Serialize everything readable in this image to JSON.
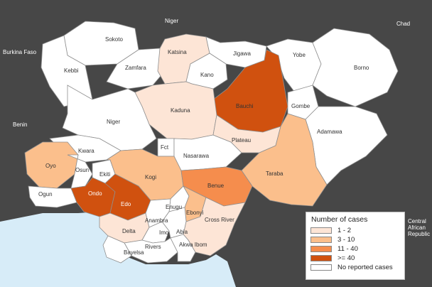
{
  "colors": {
    "background": "#474747",
    "sea": "#d7ecf8",
    "border": "#8f8f8f",
    "categories": [
      "#fde5d6",
      "#fbbf8c",
      "#f58d4d",
      "#d0510f",
      "#ffffff"
    ]
  },
  "neighbors": {
    "niger": "Niger",
    "chad": "Chad",
    "burkina_faso": "Burkina Faso",
    "benin": "Benin",
    "car": "Central African Republic",
    "car_lines": [
      "Central",
      "African",
      "Republic"
    ]
  },
  "states": [
    {
      "name": "Sokoto",
      "category": "none",
      "label": "Sokoto"
    },
    {
      "name": "Kebbi",
      "category": "none",
      "label": "Kebbi"
    },
    {
      "name": "Zamfara",
      "category": "none",
      "label": "Zamfara"
    },
    {
      "name": "Katsina",
      "category": "1 - 2",
      "label": "Katsina"
    },
    {
      "name": "Jigawa",
      "category": "none",
      "label": "Jigawa"
    },
    {
      "name": "Kano",
      "category": "none",
      "label": "Kano"
    },
    {
      "name": "Yobe",
      "category": "none",
      "label": "Yobe"
    },
    {
      "name": "Borno",
      "category": "none",
      "label": "Borno"
    },
    {
      "name": "Bauchi",
      "category": ">= 40",
      "label": "Bauchi"
    },
    {
      "name": "Gombe",
      "category": "none",
      "label": "Gombe"
    },
    {
      "name": "Kaduna",
      "category": "1 - 2",
      "label": "Kaduna"
    },
    {
      "name": "Niger",
      "category": "none",
      "label": "Niger"
    },
    {
      "name": "Kwara",
      "category": "none",
      "label": "Kwara"
    },
    {
      "name": "Fct",
      "category": "none",
      "label": "Fct"
    },
    {
      "name": "Nasarawa",
      "category": "none",
      "label": "Nasarawa"
    },
    {
      "name": "Plateau",
      "category": "1 - 2",
      "label": "Plateau"
    },
    {
      "name": "Adamawa",
      "category": "none",
      "label": "Adamawa"
    },
    {
      "name": "Taraba",
      "category": "3 - 10",
      "label": "Taraba"
    },
    {
      "name": "Oyo",
      "category": "3 - 10",
      "label": "Oyo"
    },
    {
      "name": "Osun",
      "category": "none",
      "label": "Osun"
    },
    {
      "name": "Ekiti",
      "category": "none",
      "label": "Ekiti"
    },
    {
      "name": "Kogi",
      "category": "3 - 10",
      "label": "Kogi"
    },
    {
      "name": "Benue",
      "category": "11 - 40",
      "label": "Benue"
    },
    {
      "name": "Ogun",
      "category": "none",
      "label": "Ogun"
    },
    {
      "name": "Ondo",
      "category": ">= 40",
      "label": "Ondo"
    },
    {
      "name": "Edo",
      "category": ">= 40",
      "label": "Edo"
    },
    {
      "name": "Enugu",
      "category": "none",
      "label": "Enugu"
    },
    {
      "name": "Ebonyi",
      "category": "3 - 10",
      "label": "Ebonyi"
    },
    {
      "name": "Delta",
      "category": "1 - 2",
      "label": "Delta"
    },
    {
      "name": "Anambra",
      "category": "none",
      "label": "Anambra"
    },
    {
      "name": "Imo",
      "category": "none",
      "label": "Imo"
    },
    {
      "name": "Abia",
      "category": "none",
      "label": "Abia"
    },
    {
      "name": "Cross River",
      "category": "1 - 2",
      "label": "Cross River"
    },
    {
      "name": "Rivers",
      "category": "none",
      "label": "Rivers"
    },
    {
      "name": "Akwa Ibom",
      "category": "none",
      "label": "Akwa Ibom"
    },
    {
      "name": "Bayelsa",
      "category": "none",
      "label": "Bayelsa"
    }
  ],
  "legend": {
    "title": "Number of cases",
    "items": [
      {
        "label": "1 - 2",
        "color": "#fde5d6"
      },
      {
        "label": "3 - 10",
        "color": "#fbbf8c"
      },
      {
        "label": "11 - 40",
        "color": "#f58d4d"
      },
      {
        "label": ">= 40",
        "color": "#d0510f"
      },
      {
        "label": "No reported cases",
        "color": "#ffffff"
      }
    ]
  }
}
